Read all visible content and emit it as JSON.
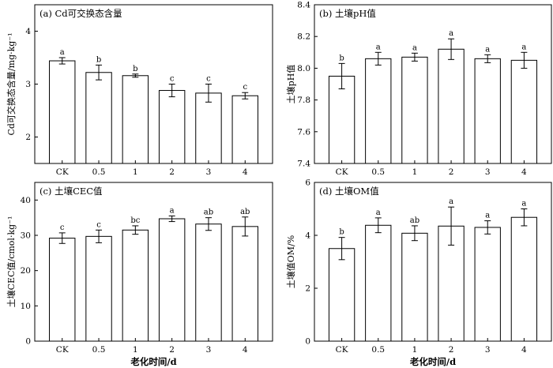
{
  "chart_data": [
    {
      "type": "bar",
      "title": "(a) Cd可交换态含量",
      "ylabel": "Cd可交换态含量/mg·kg⁻¹",
      "xlabel": "",
      "categories": [
        "CK",
        "0.5",
        "1",
        "2",
        "3",
        "4"
      ],
      "values": [
        3.44,
        3.22,
        3.16,
        2.88,
        2.83,
        2.78
      ],
      "errors": [
        0.06,
        0.14,
        0.03,
        0.12,
        0.17,
        0.06
      ],
      "letters": [
        "a",
        "b",
        "b",
        "c",
        "c",
        "c"
      ],
      "ylim": [
        1.5,
        4.5
      ],
      "yticks": [
        "2",
        "3",
        "4"
      ]
    },
    {
      "type": "bar",
      "title": "(b) 土壤pH值",
      "ylabel": "土壤pH值",
      "xlabel": "",
      "categories": [
        "CK",
        "0.5",
        "1",
        "2",
        "3",
        "4"
      ],
      "values": [
        7.95,
        8.06,
        8.07,
        8.12,
        8.06,
        8.05
      ],
      "errors": [
        0.08,
        0.04,
        0.025,
        0.065,
        0.025,
        0.05
      ],
      "letters": [
        "b",
        "a",
        "a",
        "a",
        "a",
        "a"
      ],
      "ylim": [
        7.4,
        8.4
      ],
      "yticks": [
        "7.4",
        "7.6",
        "7.8",
        "8.0",
        "8.2",
        "8.4"
      ]
    },
    {
      "type": "bar",
      "title": "(c) 土壤CEC值",
      "ylabel": "土壤CEC值/cmol·kg⁻¹",
      "xlabel": "老化时间/d",
      "categories": [
        "CK",
        "0.5",
        "1",
        "2",
        "3",
        "4"
      ],
      "values": [
        29.2,
        29.7,
        31.5,
        34.7,
        33.2,
        32.5
      ],
      "errors": [
        1.5,
        1.8,
        1.2,
        0.8,
        1.8,
        2.7
      ],
      "letters": [
        "c",
        "c",
        "bc",
        "a",
        "ab",
        "ab"
      ],
      "ylim": [
        0,
        45
      ],
      "yticks": [
        "0",
        "10",
        "20",
        "30",
        "40"
      ]
    },
    {
      "type": "bar",
      "title": "(d) 土壤OM值",
      "ylabel": "土壤值OM/%",
      "xlabel": "老化时间/d",
      "categories": [
        "CK",
        "0.5",
        "1",
        "2",
        "3",
        "4"
      ],
      "values": [
        3.5,
        4.38,
        4.08,
        4.35,
        4.3,
        4.68
      ],
      "errors": [
        0.42,
        0.28,
        0.28,
        0.72,
        0.25,
        0.32
      ],
      "letters": [
        "b",
        "a",
        "ab",
        "a",
        "a",
        "a"
      ],
      "ylim": [
        0,
        6
      ],
      "yticks": [
        "0",
        "2",
        "4",
        "6"
      ]
    }
  ]
}
